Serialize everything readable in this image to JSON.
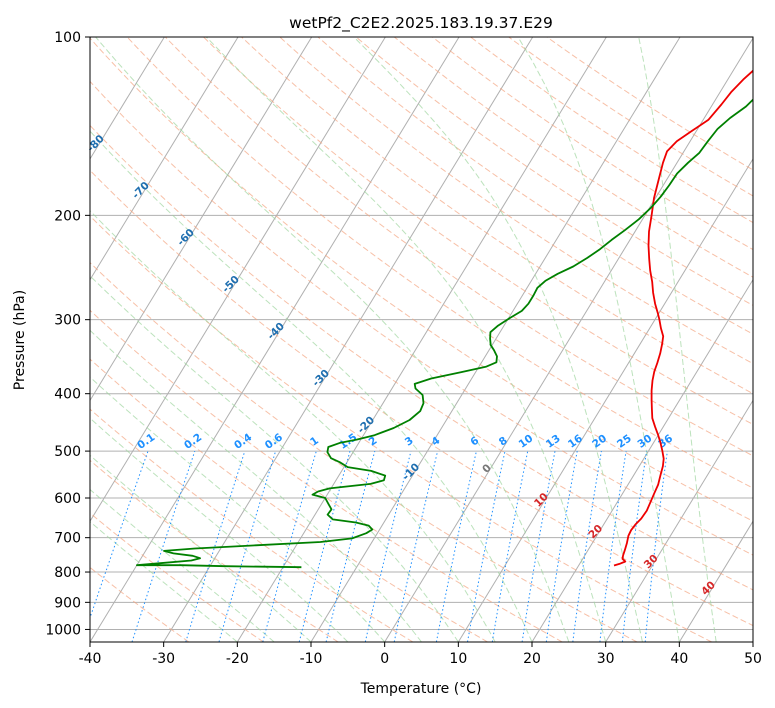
{
  "chart_data": {
    "type": "line",
    "subtype": "skew-t log-p",
    "title": "wetPf2_C2E2.2025.183.19.37.E29",
    "xlabel": "Temperature (°C)",
    "ylabel": "Pressure (hPa)",
    "xlim": [
      -40,
      50
    ],
    "ylim": [
      1050,
      100
    ],
    "y_scale": "log",
    "x_ticks": [
      -40,
      -30,
      -20,
      -10,
      0,
      10,
      20,
      30,
      40,
      50
    ],
    "y_ticks": [
      1000,
      900,
      800,
      700,
      600,
      500,
      400,
      300,
      200,
      100
    ],
    "grid": true,
    "series": [
      {
        "role": "temperature",
        "color": "#ee0000",
        "points": [
          [
            24.8,
            780
          ],
          [
            25.4,
            775
          ],
          [
            26.0,
            768
          ],
          [
            25.4,
            760
          ],
          [
            25.2,
            750
          ],
          [
            25.0,
            735
          ],
          [
            24.7,
            715
          ],
          [
            24.3,
            695
          ],
          [
            24.2,
            680
          ],
          [
            24.3,
            665
          ],
          [
            24.6,
            650
          ],
          [
            24.7,
            630
          ],
          [
            24.5,
            610
          ],
          [
            24.3,
            590
          ],
          [
            24.1,
            570
          ],
          [
            23.6,
            548
          ],
          [
            23.2,
            530
          ],
          [
            22.7,
            515
          ],
          [
            21.9,
            500
          ],
          [
            21.0,
            485
          ],
          [
            20.0,
            470
          ],
          [
            18.9,
            455
          ],
          [
            17.8,
            440
          ],
          [
            17.0,
            425
          ],
          [
            16.2,
            410
          ],
          [
            15.4,
            395
          ],
          [
            14.7,
            380
          ],
          [
            14.2,
            367
          ],
          [
            13.9,
            355
          ],
          [
            13.5,
            342
          ],
          [
            13.0,
            330
          ],
          [
            12.5,
            320
          ],
          [
            11.5,
            310
          ],
          [
            10.6,
            300
          ],
          [
            9.8,
            292
          ],
          [
            8.7,
            282
          ],
          [
            7.5,
            270
          ],
          [
            6.5,
            259
          ],
          [
            5.3,
            248
          ],
          [
            4.2,
            237
          ],
          [
            3.0,
            225
          ],
          [
            1.9,
            213
          ],
          [
            0.9,
            200
          ],
          [
            -0.2,
            187
          ],
          [
            -1.1,
            174
          ],
          [
            -1.9,
            163
          ],
          [
            -2.3,
            156
          ],
          [
            -1.8,
            150
          ],
          [
            -0.6,
            144
          ],
          [
            0.7,
            138
          ],
          [
            1.2,
            130
          ],
          [
            1.5,
            124
          ],
          [
            2.1,
            118
          ],
          [
            3.0,
            112
          ],
          [
            3.8,
            106
          ],
          [
            4.4,
            100
          ]
        ]
      },
      {
        "role": "dewpoint",
        "color": "#008000",
        "points": [
          [
            -17.5,
            785
          ],
          [
            -28.0,
            782
          ],
          [
            -34.0,
            779
          ],
          [
            -40.0,
            779
          ],
          [
            -37.0,
            773
          ],
          [
            -33.0,
            765
          ],
          [
            -32.0,
            758
          ],
          [
            -33.2,
            751
          ],
          [
            -36.0,
            744
          ],
          [
            -37.5,
            737
          ],
          [
            -33.5,
            730
          ],
          [
            -25.5,
            721
          ],
          [
            -17.0,
            712
          ],
          [
            -13.0,
            702
          ],
          [
            -11.5,
            688
          ],
          [
            -11.0,
            678
          ],
          [
            -11.8,
            668
          ],
          [
            -13.8,
            660
          ],
          [
            -17.2,
            652
          ],
          [
            -18.3,
            640
          ],
          [
            -18.2,
            627
          ],
          [
            -19.0,
            615
          ],
          [
            -20.0,
            600
          ],
          [
            -22.0,
            592
          ],
          [
            -21.5,
            585
          ],
          [
            -20.2,
            578
          ],
          [
            -15.0,
            568
          ],
          [
            -13.5,
            560
          ],
          [
            -13.7,
            550
          ],
          [
            -16.0,
            540
          ],
          [
            -19.5,
            532
          ],
          [
            -21.0,
            522
          ],
          [
            -22.5,
            514
          ],
          [
            -23.5,
            502
          ],
          [
            -23.8,
            492
          ],
          [
            -22.5,
            484
          ],
          [
            -20.5,
            478
          ],
          [
            -18.5,
            470
          ],
          [
            -16.5,
            457
          ],
          [
            -15.0,
            443
          ],
          [
            -14.3,
            428
          ],
          [
            -14.5,
            415
          ],
          [
            -15.3,
            402
          ],
          [
            -16.8,
            392
          ],
          [
            -17.3,
            385
          ],
          [
            -15.5,
            377
          ],
          [
            -12.0,
            368
          ],
          [
            -9.0,
            360
          ],
          [
            -8.0,
            354
          ],
          [
            -8.4,
            346
          ],
          [
            -9.3,
            338
          ],
          [
            -10.2,
            331
          ],
          [
            -10.8,
            323
          ],
          [
            -11.3,
            315
          ],
          [
            -10.8,
            307
          ],
          [
            -9.8,
            298
          ],
          [
            -8.8,
            290
          ],
          [
            -8.5,
            282
          ],
          [
            -8.5,
            273
          ],
          [
            -8.6,
            265
          ],
          [
            -8.1,
            258
          ],
          [
            -7.0,
            251
          ],
          [
            -5.5,
            244
          ],
          [
            -4.3,
            236
          ],
          [
            -3.3,
            228
          ],
          [
            -2.5,
            220
          ],
          [
            -1.5,
            212
          ],
          [
            -0.5,
            203
          ],
          [
            0.2,
            194
          ],
          [
            0.6,
            186
          ],
          [
            0.8,
            178
          ],
          [
            0.9,
            170
          ],
          [
            1.5,
            163
          ],
          [
            2.2,
            157
          ],
          [
            2.4,
            150
          ],
          [
            2.7,
            143
          ],
          [
            3.5,
            137
          ],
          [
            4.7,
            131
          ],
          [
            5.5,
            124
          ],
          [
            5.8,
            118
          ],
          [
            6.6,
            113
          ],
          [
            7.8,
            108
          ],
          [
            9.1,
            104
          ],
          [
            10.5,
            100
          ]
        ]
      }
    ],
    "dry_adiabats_c": [
      -100,
      -90,
      -80,
      -70,
      -60,
      -50,
      -40,
      -30,
      -20,
      -10,
      0,
      10,
      20,
      30,
      40
    ],
    "mixing_ratios_gkg": [
      "0.1",
      "0.2",
      "0.4",
      "0.6",
      "1",
      "1.5",
      "2",
      "3",
      "4",
      "6",
      "8",
      "10",
      "13",
      "16",
      "20",
      "25",
      "30",
      "36"
    ],
    "colors": {
      "dry_adiabat": "#1f6fb0",
      "moist_adiabat": "#d62728",
      "mixing_ratio": "#1e90ff",
      "zero": "#777777"
    }
  }
}
